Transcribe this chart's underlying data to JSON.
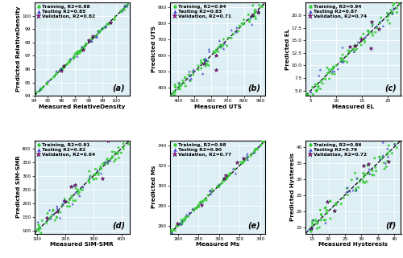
{
  "subplots": [
    {
      "label": "(a)",
      "xlabel": "Measured RelativeDensity",
      "ylabel": "Predicted RelativeDensity",
      "xlim": [
        94,
        101
      ],
      "ylim": [
        94,
        101
      ],
      "xticks": [
        94,
        95,
        96,
        97,
        98,
        99,
        100
      ],
      "yticks": [
        94,
        95,
        96,
        97,
        98,
        99,
        100
      ],
      "legend": [
        "Training, R2=0.88",
        "Testing R2=0.85",
        "Validation, R2=0.82"
      ],
      "diag_start": 94,
      "diag_end": 101,
      "n_train": 80,
      "n_test": 20,
      "n_val": 6,
      "noise_train": 0.012,
      "noise_test": 0.018,
      "noise_val": 0.022
    },
    {
      "label": "(b)",
      "xlabel": "Measured UTS",
      "ylabel": "Predicted UTS",
      "xlim": [
        350,
        930
      ],
      "ylim": [
        350,
        930
      ],
      "xticks": [
        400,
        500,
        600,
        700,
        800,
        900
      ],
      "yticks": [
        400,
        500,
        600,
        700,
        800,
        900
      ],
      "legend": [
        "Training, R2=0.94",
        "Testing R2=0.83",
        "Validation, R2=0.71"
      ],
      "diag_start": 350,
      "diag_end": 930,
      "n_train": 80,
      "n_test": 25,
      "n_val": 6,
      "noise_train": 0.035,
      "noise_test": 0.055,
      "noise_val": 0.09
    },
    {
      "label": "(c)",
      "xlabel": "Measured EL",
      "ylabel": "Predicted EL",
      "xlim": [
        4,
        22.5
      ],
      "ylim": [
        4,
        22.5
      ],
      "xticks": [
        5,
        10,
        15,
        20
      ],
      "yticks": [
        5.0,
        7.5,
        10.0,
        12.5,
        15.0,
        17.5,
        20.0
      ],
      "legend": [
        "Training, R2=0.94",
        "Testing R2=0.87",
        "Validation, R2=0.74"
      ],
      "diag_start": 4,
      "diag_end": 22.5,
      "n_train": 80,
      "n_test": 20,
      "n_val": 6,
      "noise_train": 0.045,
      "noise_test": 0.06,
      "noise_val": 0.1
    },
    {
      "label": "(d)",
      "xlabel": "Measured SIM-SMR",
      "ylabel": "Predicted SIM-SMR",
      "xlim": [
        90,
        430
      ],
      "ylim": [
        90,
        430
      ],
      "xticks": [
        100,
        200,
        300,
        400
      ],
      "yticks": [
        100,
        150,
        200,
        250,
        300,
        350,
        400
      ],
      "legend": [
        "Training, R2=0.91",
        "Testing R2=0.82",
        "Validation, R2=0.64"
      ],
      "diag_start": 90,
      "diag_end": 430,
      "n_train": 80,
      "n_test": 20,
      "n_val": 7,
      "noise_train": 0.04,
      "noise_test": 0.06,
      "noise_val": 0.14
    },
    {
      "label": "(e)",
      "xlabel": "Measured Ms",
      "ylabel": "Predicted Ms",
      "xlim": [
        252,
        345
      ],
      "ylim": [
        252,
        345
      ],
      "xticks": [
        260,
        280,
        300,
        320,
        340
      ],
      "yticks": [
        260,
        280,
        300,
        320,
        340
      ],
      "legend": [
        "Training, R2=0.98",
        "Testing R2=0.90",
        "Validation, R2=0.77"
      ],
      "diag_start": 252,
      "diag_end": 345,
      "n_train": 80,
      "n_test": 20,
      "n_val": 6,
      "noise_train": 0.012,
      "noise_test": 0.025,
      "noise_val": 0.05
    },
    {
      "label": "(f)",
      "xlabel": "Measured Hysteresis",
      "ylabel": "Predicted Hysteresis",
      "xlim": [
        13,
        42
      ],
      "ylim": [
        13,
        42
      ],
      "xticks": [
        15,
        20,
        25,
        30,
        35,
        40
      ],
      "yticks": [
        15,
        20,
        25,
        30,
        35,
        40
      ],
      "legend": [
        "Training, R2=0.86",
        "Testing R2=0.79",
        "Validation, R2=0.72"
      ],
      "diag_start": 13,
      "diag_end": 42,
      "n_train": 80,
      "n_test": 20,
      "n_val": 7,
      "noise_train": 0.055,
      "noise_test": 0.075,
      "noise_val": 0.1
    }
  ],
  "train_color": "#33cc33",
  "test_color": "#4444cc",
  "val_color": "#cc00cc",
  "bg_color": "#ddeef5",
  "fontsize_label": 5.2,
  "fontsize_legend": 4.2,
  "fontsize_tick": 4.2,
  "fontsize_panel": 7.0
}
